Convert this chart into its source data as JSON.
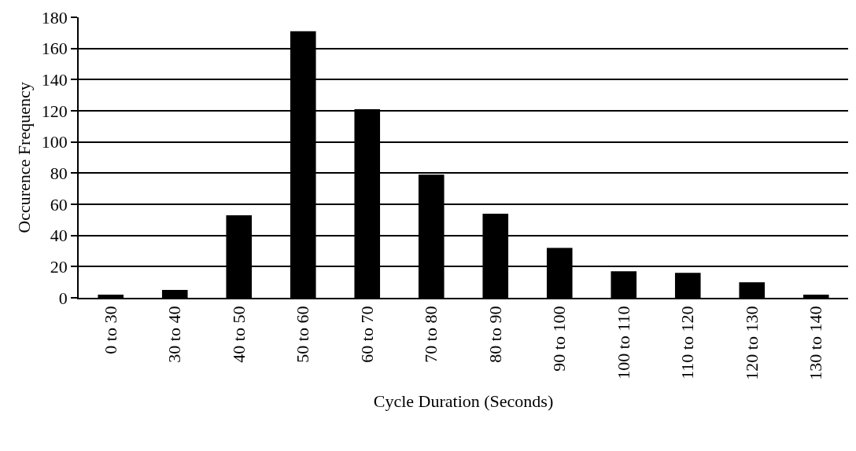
{
  "chart_data": {
    "type": "bar",
    "xlabel": "Cycle Duration (Seconds)",
    "ylabel": "Occurence Frequency",
    "categories": [
      "0 to 30",
      "30 to 40",
      "40 to 50",
      "50 to 60",
      "60 to 70",
      "70 to 80",
      "80 to 90",
      "90 to 100",
      "100 to 110",
      "110 to 120",
      "120 to 130",
      "130 to 140"
    ],
    "values": [
      2,
      5,
      53,
      171,
      121,
      79,
      54,
      32,
      17,
      16,
      10,
      2
    ],
    "color": "#000000",
    "ylim": [
      0,
      180
    ],
    "yticks": [
      0,
      20,
      40,
      60,
      80,
      100,
      120,
      140,
      160,
      180
    ],
    "grid": "y",
    "legend": false
  }
}
